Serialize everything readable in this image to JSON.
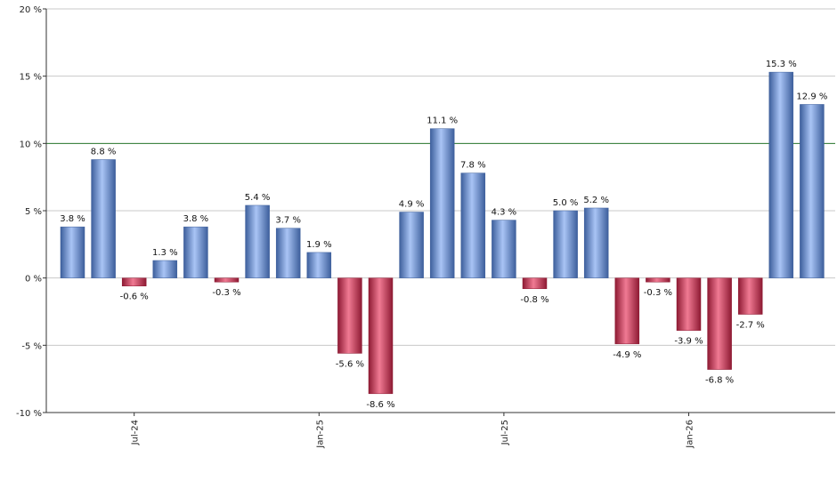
{
  "chart_data": {
    "type": "bar",
    "values": [
      3.8,
      8.8,
      -0.6,
      1.3,
      3.8,
      -0.3,
      5.4,
      3.7,
      1.9,
      -5.6,
      -8.6,
      4.9,
      11.1,
      7.8,
      4.3,
      -0.8,
      5.0,
      5.2,
      -4.9,
      -0.3,
      -3.9,
      -6.8,
      -2.7,
      15.3,
      12.9
    ],
    "data_labels": [
      "3.8 %",
      "8.8 %",
      "-0.6 %",
      "1.3 %",
      "3.8 %",
      "-0.3 %",
      "5.4 %",
      "3.7 %",
      "1.9 %",
      "-5.6 %",
      "-8.6 %",
      "4.9 %",
      "11.1 %",
      "7.8 %",
      "4.3 %",
      "-0.8 %",
      "5.0 %",
      "5.2 %",
      "-4.9 %",
      "-0.3 %",
      "-3.9 %",
      "-6.8 %",
      "-2.7 %",
      "15.3 %",
      "12.9 %"
    ],
    "x_tick_labels": [
      {
        "bar_index": 2,
        "label": "Jul-24"
      },
      {
        "bar_index": 8,
        "label": "Jan-25"
      },
      {
        "bar_index": 14,
        "label": "Jul-25"
      },
      {
        "bar_index": 20,
        "label": "Jan-26"
      }
    ],
    "y_ticks": [
      20,
      15,
      10,
      5,
      0,
      -5,
      -10
    ],
    "y_tick_labels": [
      "20 %",
      "15 %",
      "10 %",
      "5 %",
      "0 %",
      "-5 %",
      "-10 %"
    ],
    "ylim": [
      -10,
      20
    ],
    "reference_line": 10,
    "grid": true,
    "colors": {
      "positive_light": "#a9c4f5",
      "positive_dark": "#3d5f9c",
      "negative_light": "#f07a93",
      "negative_dark": "#8e1a33",
      "reference_line": "#2e7d32",
      "grid": "#c8c8c8",
      "axis": "#333333"
    }
  }
}
